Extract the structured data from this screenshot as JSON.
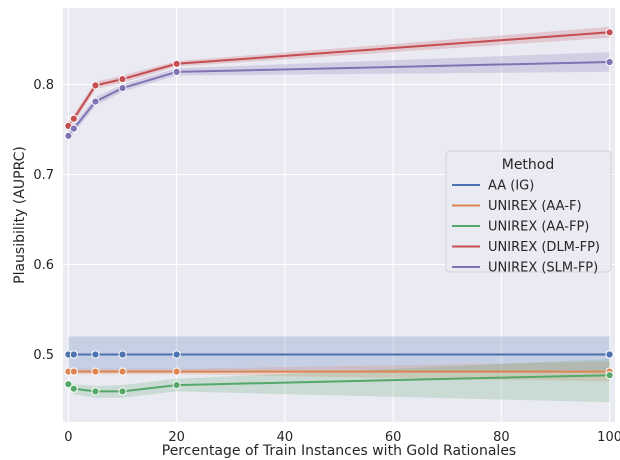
{
  "chart_data": {
    "type": "line",
    "title": "",
    "xlabel": "Percentage of Train Instances with Gold Rationales",
    "ylabel": "Plausibility (AUPRC)",
    "xlim": [
      -1,
      101
    ],
    "ylim": [
      0.425,
      0.885
    ],
    "xticks": [
      0,
      20,
      40,
      60,
      80,
      100
    ],
    "yticks": [
      0.5,
      0.6,
      0.7,
      0.8
    ],
    "ytick_labels": [
      "0.5",
      "0.6",
      "0.7",
      "0.8"
    ],
    "grid": true,
    "background": "#eaeaf2",
    "legend": {
      "title": "Method",
      "position": "center-right"
    },
    "series": [
      {
        "name": "AA (IG)",
        "color": "#4c72b0",
        "x": [
          0,
          1,
          5,
          10,
          20,
          100
        ],
        "y": [
          0.5,
          0.5,
          0.5,
          0.5,
          0.5,
          0.5
        ],
        "lower": [
          0.48,
          0.48,
          0.48,
          0.48,
          0.48,
          0.48
        ],
        "upper": [
          0.52,
          0.52,
          0.52,
          0.52,
          0.52,
          0.52
        ]
      },
      {
        "name": "UNIREX (AA-F)",
        "color": "#dd8452",
        "x": [
          0,
          1,
          5,
          10,
          20,
          100
        ],
        "y": [
          0.481,
          0.481,
          0.481,
          0.481,
          0.481,
          0.481
        ],
        "lower": [
          0.478,
          0.478,
          0.478,
          0.478,
          0.478,
          0.47
        ],
        "upper": [
          0.484,
          0.484,
          0.484,
          0.484,
          0.484,
          0.492
        ]
      },
      {
        "name": "UNIREX (AA-FP)",
        "color": "#55a868",
        "x": [
          0,
          1,
          5,
          10,
          20,
          100
        ],
        "y": [
          0.467,
          0.462,
          0.459,
          0.459,
          0.466,
          0.477
        ],
        "lower": [
          0.462,
          0.456,
          0.452,
          0.452,
          0.459,
          0.447
        ],
        "upper": [
          0.472,
          0.467,
          0.465,
          0.466,
          0.473,
          0.495
        ]
      },
      {
        "name": "UNIREX (DLM-FP)",
        "color": "#c44e52",
        "x": [
          0,
          1,
          5,
          10,
          20,
          100
        ],
        "y": [
          0.754,
          0.762,
          0.799,
          0.806,
          0.823,
          0.858
        ],
        "lower": [
          0.749,
          0.757,
          0.795,
          0.802,
          0.82,
          0.852
        ],
        "upper": [
          0.759,
          0.767,
          0.803,
          0.81,
          0.826,
          0.864
        ]
      },
      {
        "name": "UNIREX (SLM-FP)",
        "color": "#8172b3",
        "x": [
          0,
          1,
          5,
          10,
          20,
          100
        ],
        "y": [
          0.743,
          0.751,
          0.781,
          0.796,
          0.814,
          0.825
        ],
        "lower": [
          0.738,
          0.746,
          0.776,
          0.792,
          0.81,
          0.814
        ],
        "upper": [
          0.748,
          0.756,
          0.786,
          0.8,
          0.818,
          0.836
        ]
      }
    ]
  }
}
